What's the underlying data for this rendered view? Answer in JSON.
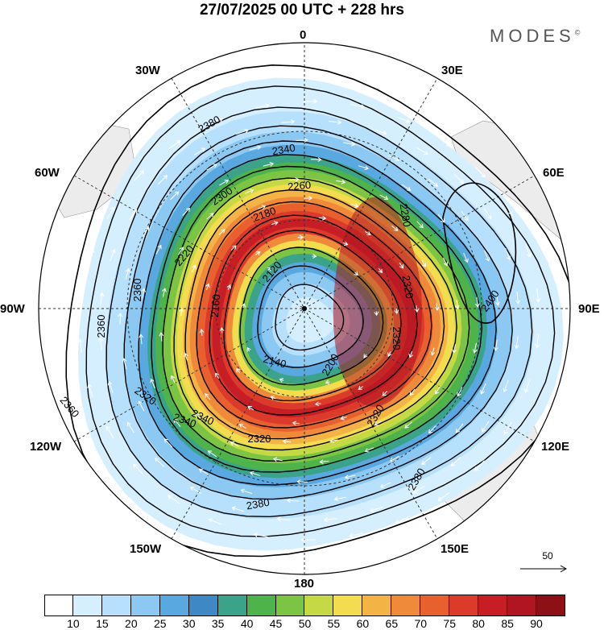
{
  "title": "27/07/2025  00 UTC  + 228 hrs",
  "brand": "MODES",
  "brand_mark": "©",
  "longitude_labels": [
    "0",
    "30E",
    "60E",
    "90E",
    "120E",
    "150E",
    "180",
    "150W",
    "120W",
    "90W",
    "60W",
    "30W"
  ],
  "contour_labels": [
    "2380",
    "2340",
    "2300",
    "2260",
    "2180",
    "2220",
    "2120",
    "2160",
    "2140",
    "2200",
    "2280",
    "2320",
    "2360",
    "2400",
    "2340",
    "2320",
    "2380",
    "2380",
    "2360",
    "2360",
    "2320",
    "2320",
    "2340",
    "2320"
  ],
  "reference_vector": {
    "label": "50",
    "value": 50
  },
  "colorbar": {
    "colors": [
      "#ffffff",
      "#d5efff",
      "#b6e0fb",
      "#8cc9f2",
      "#5aa8e0",
      "#3f88c6",
      "#3aa38a",
      "#4db34a",
      "#7cc443",
      "#c4d943",
      "#f3dc4e",
      "#f4b445",
      "#ef8a3a",
      "#e9602f",
      "#dc3a2a",
      "#c71e26",
      "#b01521",
      "#8c1015"
    ],
    "labels": [
      "10",
      "15",
      "20",
      "25",
      "30",
      "35",
      "40",
      "45",
      "50",
      "55",
      "60",
      "65",
      "70",
      "75",
      "80",
      "85",
      "90"
    ]
  }
}
